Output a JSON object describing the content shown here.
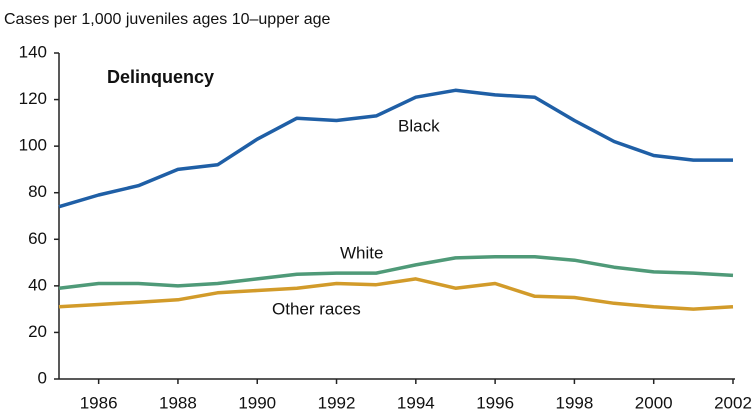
{
  "chart_data": {
    "type": "line",
    "title": "Delinquency",
    "ylabel": "Cases per 1,000 juveniles ages 10–upper age",
    "x": [
      1985,
      1986,
      1987,
      1988,
      1989,
      1990,
      1991,
      1992,
      1993,
      1994,
      1995,
      1996,
      1997,
      1998,
      1999,
      2000,
      2001,
      2002
    ],
    "series": [
      {
        "name": "Black",
        "color": "#1f5fa6",
        "values": [
          74,
          79,
          83,
          90,
          92,
          103,
          112,
          111,
          113,
          121,
          124,
          122,
          121,
          111,
          102,
          96,
          94,
          94
        ]
      },
      {
        "name": "White",
        "color": "#4f9a78",
        "values": [
          39,
          41,
          41,
          40,
          41,
          43,
          45,
          45.5,
          45.5,
          49,
          52,
          52.5,
          52.5,
          51,
          48,
          46,
          45.5,
          44.5
        ]
      },
      {
        "name": "Other races",
        "color": "#d29b2a",
        "values": [
          31,
          32,
          33,
          34,
          37,
          38,
          39,
          41,
          40.5,
          43,
          39,
          41,
          35.5,
          35,
          32.5,
          31,
          30,
          31
        ]
      }
    ],
    "xlim": [
      1985,
      2002
    ],
    "xticks": [
      1986,
      1988,
      1990,
      1992,
      1994,
      1996,
      1998,
      2000,
      2002
    ],
    "ylim": [
      0,
      140
    ],
    "yticks": [
      0,
      20,
      40,
      60,
      80,
      100,
      120,
      140
    ]
  }
}
